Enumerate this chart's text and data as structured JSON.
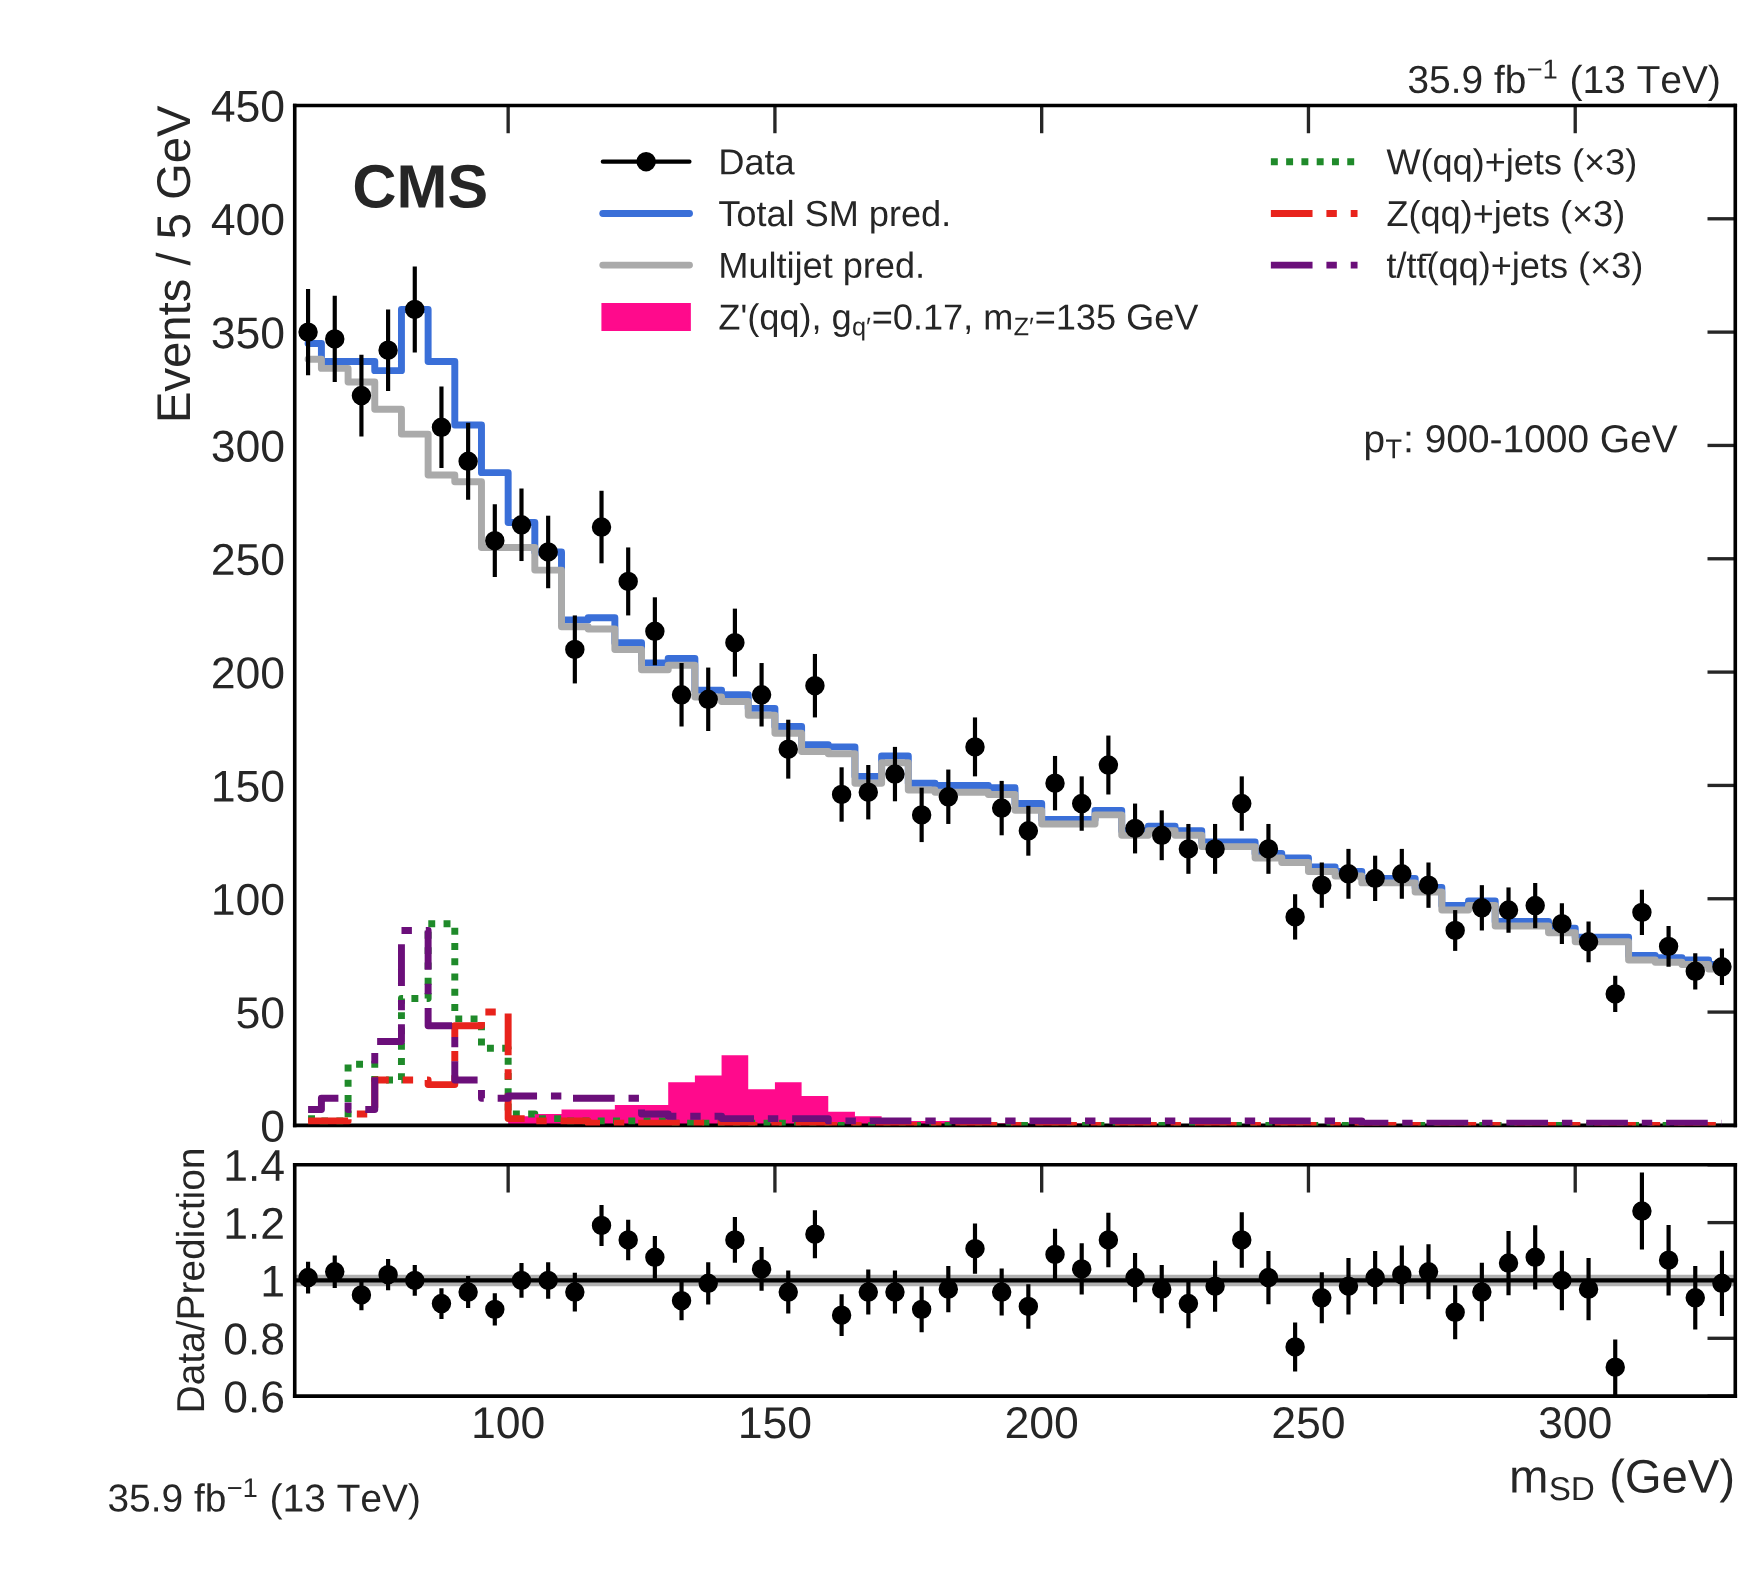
{
  "chart_data": [
    {
      "type": "histogram",
      "ylabel": "Events / 5 GeV",
      "xlim": [
        60,
        330
      ],
      "xticks": [
        {
          "value": 100,
          "label": null
        },
        {
          "value": 150,
          "label": null
        },
        {
          "value": 200,
          "label": null
        },
        {
          "value": 250,
          "label": null
        },
        {
          "value": 300,
          "label": null
        }
      ],
      "ylim": [
        0,
        450
      ],
      "yticks": [
        0,
        50,
        100,
        150,
        200,
        250,
        300,
        350,
        400,
        450
      ],
      "tick_labels": "y",
      "legend": "top",
      "grid": false,
      "annotations": [
        "CMS",
        "p$_{T}$: 900-1000 GeV",
        "35.9 fb$^{−1}$ (13 TeV)"
      ],
      "bins": [
        60,
        65,
        70,
        75,
        80,
        85,
        90,
        95,
        100,
        105,
        110,
        115,
        120,
        125,
        130,
        135,
        140,
        145,
        150,
        155,
        160,
        165,
        170,
        175,
        180,
        185,
        190,
        195,
        200,
        205,
        210,
        215,
        220,
        225,
        230,
        235,
        240,
        245,
        250,
        255,
        260,
        265,
        270,
        275,
        280,
        285,
        290,
        295,
        300,
        305,
        310,
        315,
        320,
        325,
        330
      ],
      "series": [
        {
          "name": "Data",
          "type": "scatter",
          "marker": "circle",
          "color": "#000000",
          "x": [
            62.5,
            67.5,
            72.5,
            77.5,
            82.5,
            87.5,
            92.5,
            97.5,
            102.5,
            107.5,
            112.5,
            117.5,
            122.5,
            127.5,
            132.5,
            137.5,
            142.5,
            147.5,
            152.5,
            157.5,
            162.5,
            167.5,
            172.5,
            177.5,
            182.5,
            187.5,
            192.5,
            197.5,
            202.5,
            207.5,
            212.5,
            217.5,
            222.5,
            227.5,
            232.5,
            237.5,
            242.5,
            247.5,
            252.5,
            257.5,
            262.5,
            267.5,
            272.5,
            277.5,
            282.5,
            287.5,
            292.5,
            297.5,
            302.5,
            307.5,
            312.5,
            317.5,
            322.5,
            327.5
          ],
          "values": [
            350,
            347,
            322,
            342,
            360,
            308,
            293,
            258,
            265,
            253,
            210,
            264,
            240,
            218,
            190,
            188,
            213,
            190,
            166,
            194,
            146,
            147,
            155,
            137,
            145,
            167,
            140,
            130,
            151,
            142,
            159,
            131,
            128,
            122,
            122,
            142,
            122,
            92,
            106,
            111,
            109,
            111,
            106,
            86,
            96,
            95,
            97,
            89,
            81,
            58,
            94,
            79,
            68,
            70
          ],
          "errors": [
            19,
            19,
            18,
            18,
            19,
            18,
            17,
            16,
            16,
            16,
            15,
            16,
            15,
            15,
            14,
            14,
            15,
            14,
            13,
            14,
            12,
            12,
            12,
            12,
            12,
            13,
            12,
            11,
            12,
            12,
            13,
            11,
            11,
            11,
            11,
            12,
            11,
            10,
            10,
            11,
            10,
            11,
            10,
            9,
            10,
            10,
            10,
            9,
            9,
            8,
            10,
            9,
            8,
            8
          ]
        },
        {
          "name": "Total SM pred.",
          "type": "step",
          "line_style": "solid",
          "color": "#3a6fd8",
          "x": [
            62.5,
            67.5,
            72.5,
            77.5,
            82.5,
            87.5,
            92.5,
            97.5,
            102.5,
            107.5,
            112.5,
            117.5,
            122.5,
            127.5,
            132.5,
            137.5,
            142.5,
            147.5,
            152.5,
            157.5,
            162.5,
            167.5,
            172.5,
            177.5,
            182.5,
            187.5,
            192.5,
            197.5,
            202.5,
            207.5,
            212.5,
            217.5,
            222.5,
            227.5,
            232.5,
            237.5,
            242.5,
            247.5,
            252.5,
            257.5,
            262.5,
            267.5,
            272.5,
            277.5,
            282.5,
            287.5,
            292.5,
            297.5,
            302.5,
            307.5,
            312.5,
            317.5,
            322.5,
            327.5
          ],
          "values": [
            345,
            337,
            337,
            333,
            360,
            337,
            309,
            288,
            266,
            253,
            223,
            224,
            213,
            204,
            206,
            192,
            190,
            184,
            176,
            168,
            167,
            154,
            163,
            151,
            150,
            150,
            149,
            142,
            135,
            135,
            139,
            130,
            132,
            130,
            125,
            125,
            120,
            118,
            114,
            112,
            109,
            109,
            105,
            97,
            99,
            90,
            90,
            87,
            83,
            83,
            75,
            74,
            73,
            71
          ]
        },
        {
          "name": "Multijet pred.",
          "type": "step",
          "line_style": "solid",
          "color": "#aaaaaa",
          "x": [
            62.5,
            67.5,
            72.5,
            77.5,
            82.5,
            87.5,
            92.5,
            97.5,
            102.5,
            107.5,
            112.5,
            117.5,
            122.5,
            127.5,
            132.5,
            137.5,
            142.5,
            147.5,
            152.5,
            157.5,
            162.5,
            167.5,
            172.5,
            177.5,
            182.5,
            187.5,
            192.5,
            197.5,
            202.5,
            207.5,
            212.5,
            217.5,
            222.5,
            227.5,
            232.5,
            237.5,
            242.5,
            247.5,
            252.5,
            257.5,
            262.5,
            267.5,
            272.5,
            277.5,
            282.5,
            287.5,
            292.5,
            297.5,
            302.5,
            307.5,
            312.5,
            317.5,
            322.5,
            327.5
          ],
          "values": [
            338,
            334,
            328,
            316,
            305,
            287,
            284,
            255,
            255,
            245,
            220,
            219,
            210,
            201,
            203,
            189,
            187,
            181,
            173,
            165,
            164,
            151,
            160,
            148,
            147,
            147,
            146,
            139,
            133,
            133,
            137,
            128,
            130,
            128,
            123,
            123,
            118,
            116,
            112,
            110,
            107,
            107,
            103,
            95,
            97,
            88,
            88,
            85,
            81,
            81,
            73,
            72,
            71,
            69
          ]
        },
        {
          "name": "Z'(qq), g$_{q′}$=0.17, m$_{Z′}$=135 GeV",
          "type": "histogram",
          "color": "#ff0a8c",
          "values": [
            0,
            0,
            0,
            0,
            0,
            0,
            0,
            0,
            4,
            5,
            7,
            7,
            9,
            9,
            19,
            22,
            31,
            16,
            19,
            13,
            6,
            4,
            3,
            2,
            2,
            2,
            1,
            1,
            1,
            1,
            0,
            0,
            0,
            0,
            0,
            0,
            0,
            0,
            0,
            0,
            0,
            0,
            0,
            0,
            0,
            0,
            0,
            0,
            0,
            0,
            0,
            0,
            0,
            0
          ]
        },
        {
          "name": "W(qq)+jets (×3)",
          "type": "step",
          "line_style": "dotted",
          "color": "#1f8a2a",
          "x": [
            62.5,
            67.5,
            72.5,
            77.5,
            82.5,
            87.5,
            92.5,
            97.5,
            102.5,
            107.5,
            112.5,
            117.5,
            122.5,
            127.5,
            132.5,
            137.5,
            142.5,
            147.5,
            152.5,
            157.5,
            162.5,
            167.5,
            172.5,
            177.5,
            182.5,
            187.5,
            192.5,
            197.5,
            202.5,
            207.5,
            212.5,
            217.5,
            222.5,
            227.5,
            232.5,
            237.5,
            242.5,
            247.5,
            252.5,
            257.5,
            262.5,
            267.5,
            272.5,
            277.5,
            282.5,
            287.5,
            292.5,
            297.5,
            302.5,
            307.5,
            312.5,
            317.5,
            322.5,
            327.5
          ],
          "values": [
            3,
            2,
            27,
            20,
            56,
            89,
            47,
            34,
            5,
            3,
            2,
            2,
            2,
            2,
            1,
            1,
            1,
            1,
            1,
            1,
            0,
            0,
            0,
            0,
            0,
            0,
            0,
            0,
            0,
            0,
            0,
            0,
            0,
            0,
            0,
            0,
            0,
            0,
            0,
            0,
            0,
            0,
            0,
            0,
            0,
            0,
            0,
            0,
            0,
            0,
            0,
            0,
            0,
            0
          ]
        },
        {
          "name": "Z(qq)+jets (×3)",
          "type": "step",
          "line_style": "dashed",
          "color": "#e8231c",
          "x": [
            62.5,
            67.5,
            72.5,
            77.5,
            82.5,
            87.5,
            92.5,
            97.5,
            102.5,
            107.5,
            112.5,
            117.5,
            122.5,
            127.5,
            132.5,
            137.5,
            142.5,
            147.5,
            152.5,
            157.5,
            162.5,
            167.5,
            172.5,
            177.5,
            182.5,
            187.5,
            192.5,
            197.5,
            202.5,
            207.5,
            212.5,
            217.5,
            222.5,
            227.5,
            232.5,
            237.5,
            242.5,
            247.5,
            252.5,
            257.5,
            262.5,
            267.5,
            272.5,
            277.5,
            282.5,
            287.5,
            292.5,
            297.5,
            302.5,
            307.5,
            312.5,
            317.5,
            322.5,
            327.5
          ],
          "values": [
            2,
            2,
            5,
            20,
            20,
            18,
            44,
            50,
            3,
            2,
            2,
            1,
            1,
            1,
            1,
            1,
            0,
            0,
            0,
            0,
            0,
            0,
            0,
            0,
            0,
            0,
            0,
            0,
            0,
            0,
            0,
            0,
            0,
            0,
            0,
            0,
            0,
            0,
            0,
            0,
            0,
            0,
            0,
            0,
            0,
            0,
            0,
            0,
            0,
            0,
            0,
            0,
            0,
            0
          ]
        },
        {
          "name": "t/tt̄(qq)+jets (×3)",
          "type": "step",
          "line_style": "dashed",
          "color": "#6b0f7a",
          "x": [
            62.5,
            67.5,
            72.5,
            77.5,
            82.5,
            87.5,
            92.5,
            97.5,
            102.5,
            107.5,
            112.5,
            117.5,
            122.5,
            127.5,
            132.5,
            137.5,
            142.5,
            147.5,
            152.5,
            157.5,
            162.5,
            167.5,
            172.5,
            177.5,
            182.5,
            187.5,
            192.5,
            197.5,
            202.5,
            207.5,
            212.5,
            217.5,
            222.5,
            227.5,
            232.5,
            237.5,
            242.5,
            247.5,
            252.5,
            257.5,
            262.5,
            267.5,
            272.5,
            277.5,
            282.5,
            287.5,
            292.5,
            297.5,
            302.5,
            307.5,
            312.5,
            317.5,
            322.5,
            327.5
          ],
          "values": [
            7,
            12,
            7,
            37,
            86,
            44,
            20,
            12,
            13,
            13,
            12,
            12,
            12,
            5,
            4,
            4,
            3,
            3,
            3,
            3,
            2,
            2,
            2,
            2,
            2,
            2,
            2,
            2,
            2,
            2,
            2,
            2,
            2,
            2,
            2,
            2,
            2,
            2,
            2,
            2,
            1,
            1,
            1,
            1,
            1,
            1,
            1,
            1,
            1,
            1,
            1,
            1,
            1,
            1
          ]
        }
      ]
    },
    {
      "type": "scatter",
      "xlabel": "m$_{SD}$ (GeV)",
      "ylabel": "Data/Prediction",
      "xlim": [
        60,
        330
      ],
      "xticks": [
        100,
        150,
        200,
        250,
        300
      ],
      "ylim": [
        0.6,
        1.4
      ],
      "yticks": [
        0.6,
        0.8,
        1,
        1.2,
        1.4
      ],
      "grid": false,
      "marker": "circle",
      "annotations": [
        "35.9 fb$^{−1}$ (13 TeV)"
      ],
      "ref_lines": [
        {
          "axis": "y",
          "value": 1,
          "color": "#000000",
          "line_style": "solid"
        }
      ],
      "bands": [
        {
          "axis": "y",
          "from": 0.98,
          "to": 1.02,
          "color": "#b0b0b0"
        }
      ],
      "series": [
        {
          "color": "#000000",
          "x": [
            62.5,
            67.5,
            72.5,
            77.5,
            82.5,
            87.5,
            92.5,
            97.5,
            102.5,
            107.5,
            112.5,
            117.5,
            122.5,
            127.5,
            132.5,
            137.5,
            142.5,
            147.5,
            152.5,
            157.5,
            162.5,
            167.5,
            172.5,
            177.5,
            182.5,
            187.5,
            192.5,
            197.5,
            202.5,
            207.5,
            212.5,
            217.5,
            222.5,
            227.5,
            232.5,
            237.5,
            242.5,
            247.5,
            252.5,
            257.5,
            262.5,
            267.5,
            272.5,
            277.5,
            282.5,
            287.5,
            292.5,
            297.5,
            302.5,
            307.5,
            312.5,
            317.5,
            322.5,
            327.5
          ],
          "values": [
            1.01,
            1.03,
            0.95,
            1.02,
            1.0,
            0.92,
            0.96,
            0.9,
            1.0,
            1.0,
            0.96,
            1.19,
            1.14,
            1.08,
            0.93,
            0.99,
            1.14,
            1.04,
            0.96,
            1.16,
            0.88,
            0.96,
            0.96,
            0.9,
            0.97,
            1.11,
            0.96,
            0.91,
            1.09,
            1.04,
            1.14,
            1.01,
            0.97,
            0.92,
            0.98,
            1.14,
            1.01,
            0.77,
            0.94,
            0.98,
            1.01,
            1.02,
            1.03,
            0.89,
            0.96,
            1.06,
            1.08,
            1.0,
            0.97,
            0.7,
            1.24,
            1.07,
            0.94,
            0.99
          ],
          "errors": [
            0.055,
            0.056,
            0.053,
            0.054,
            0.053,
            0.053,
            0.055,
            0.056,
            0.06,
            0.063,
            0.067,
            0.071,
            0.07,
            0.074,
            0.068,
            0.073,
            0.079,
            0.076,
            0.074,
            0.083,
            0.072,
            0.078,
            0.074,
            0.079,
            0.08,
            0.087,
            0.081,
            0.077,
            0.089,
            0.089,
            0.094,
            0.085,
            0.083,
            0.085,
            0.088,
            0.096,
            0.092,
            0.085,
            0.088,
            0.098,
            0.092,
            0.101,
            0.095,
            0.093,
            0.101,
            0.111,
            0.111,
            0.103,
            0.108,
            0.096,
            0.133,
            0.122,
            0.11,
            0.113
          ]
        }
      ]
    }
  ]
}
